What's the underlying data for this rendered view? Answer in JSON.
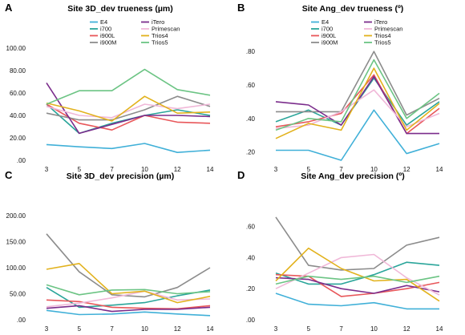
{
  "chart_data": [
    {
      "type": "line",
      "panel": "A",
      "title": "Site 3D_dev trueness (µm)",
      "x": [
        3,
        5,
        7,
        10,
        12,
        14
      ],
      "ylim": [
        0,
        100
      ],
      "yticks": [
        0,
        20,
        40,
        60,
        80,
        100
      ],
      "ytick_labels": [
        ".00",
        "20.00",
        "40.00",
        "60.00",
        "80.00",
        "100.00"
      ],
      "grid": false,
      "legend_position": "top",
      "series": [
        {
          "name": "E4",
          "color": "#40b0d8",
          "values": [
            14,
            12,
            10.5,
            15,
            7,
            9
          ]
        },
        {
          "name": "i700",
          "color": "#2aa59a",
          "values": [
            50,
            24,
            33,
            40,
            45,
            40
          ]
        },
        {
          "name": "i900L",
          "color": "#e8575a",
          "values": [
            50,
            33,
            27,
            40,
            34,
            33
          ]
        },
        {
          "name": "i900M",
          "color": "#8c8c8c",
          "values": [
            42,
            36,
            36,
            45,
            57,
            48
          ]
        },
        {
          "name": "iTero",
          "color": "#7b2d8c",
          "values": [
            69,
            24,
            32,
            40,
            40,
            39
          ]
        },
        {
          "name": "Primescan",
          "color": "#f0b8d8",
          "values": [
            48,
            40,
            38,
            50,
            46,
            50
          ]
        },
        {
          "name": "Trios4",
          "color": "#e2b21d",
          "values": [
            51,
            44,
            35,
            57,
            42,
            43
          ]
        },
        {
          "name": "Trios5",
          "color": "#6cc484",
          "values": [
            50,
            62,
            62,
            81,
            63,
            58
          ]
        }
      ]
    },
    {
      "type": "line",
      "panel": "B",
      "title": "Site Ang_dev trueness (º)",
      "x": [
        3,
        5,
        7,
        10,
        12,
        14
      ],
      "ylim": [
        0.15,
        0.82
      ],
      "yticks": [
        0.2,
        0.4,
        0.6,
        0.8
      ],
      "ytick_labels": [
        ".20",
        ".40",
        ".60",
        ".80"
      ],
      "grid": false,
      "legend_position": "top",
      "series": [
        {
          "name": "E4",
          "color": "#40b0d8",
          "values": [
            0.21,
            0.21,
            0.15,
            0.45,
            0.19,
            0.25
          ]
        },
        {
          "name": "i700",
          "color": "#2aa59a",
          "values": [
            0.38,
            0.45,
            0.36,
            0.64,
            0.36,
            0.5
          ]
        },
        {
          "name": "i900L",
          "color": "#e8575a",
          "values": [
            0.35,
            0.38,
            0.43,
            0.66,
            0.31,
            0.46
          ]
        },
        {
          "name": "i900M",
          "color": "#8c8c8c",
          "values": [
            0.44,
            0.44,
            0.44,
            0.8,
            0.42,
            0.52
          ]
        },
        {
          "name": "iTero",
          "color": "#7b2d8c",
          "values": [
            0.5,
            0.48,
            0.36,
            0.65,
            0.31,
            0.31
          ]
        },
        {
          "name": "Primescan",
          "color": "#f0b8d8",
          "values": [
            0.34,
            0.36,
            0.44,
            0.57,
            0.35,
            0.43
          ]
        },
        {
          "name": "Trios4",
          "color": "#e2b21d",
          "values": [
            0.28,
            0.37,
            0.33,
            0.7,
            0.33,
            0.49
          ]
        },
        {
          "name": "Trios5",
          "color": "#6cc484",
          "values": [
            0.33,
            0.4,
            0.38,
            0.75,
            0.4,
            0.55
          ]
        }
      ]
    },
    {
      "type": "line",
      "panel": "C",
      "title": "Site 3D_dev precision (µm)",
      "x": [
        3,
        5,
        7,
        10,
        12,
        14
      ],
      "ylim": [
        0,
        200
      ],
      "yticks": [
        0,
        50,
        100,
        150,
        200
      ],
      "ytick_labels": [
        ".00",
        "50.00",
        "100.00",
        "150.00",
        "200.00"
      ],
      "grid": false,
      "legend_position": "none",
      "series": [
        {
          "name": "E4",
          "color": "#40b0d8",
          "values": [
            18,
            10,
            11,
            15,
            11,
            8
          ]
        },
        {
          "name": "i700",
          "color": "#2aa59a",
          "values": [
            62,
            24,
            28,
            33,
            46,
            57
          ]
        },
        {
          "name": "i900L",
          "color": "#e8575a",
          "values": [
            38,
            35,
            24,
            22,
            21,
            27
          ]
        },
        {
          "name": "i900M",
          "color": "#8c8c8c",
          "values": [
            165,
            92,
            48,
            44,
            62,
            100
          ]
        },
        {
          "name": "iTero",
          "color": "#7b2d8c",
          "values": [
            22,
            27,
            16,
            20,
            20,
            24
          ]
        },
        {
          "name": "Primescan",
          "color": "#f0b8d8",
          "values": [
            25,
            32,
            42,
            55,
            38,
            40
          ]
        },
        {
          "name": "Trios4",
          "color": "#e2b21d",
          "values": [
            97,
            108,
            50,
            55,
            33,
            45
          ]
        },
        {
          "name": "Trios5",
          "color": "#6cc484",
          "values": [
            67,
            48,
            57,
            58,
            50,
            54
          ]
        }
      ]
    },
    {
      "type": "line",
      "panel": "D",
      "title": "Site Ang_dev precision (º)",
      "x": [
        3,
        5,
        7,
        10,
        12,
        14
      ],
      "ylim": [
        0,
        0.67
      ],
      "yticks": [
        0,
        0.2,
        0.4,
        0.6
      ],
      "ytick_labels": [
        ".00",
        ".20",
        ".40",
        ".60"
      ],
      "grid": false,
      "legend_position": "none",
      "series": [
        {
          "name": "E4",
          "color": "#40b0d8",
          "values": [
            0.17,
            0.1,
            0.09,
            0.11,
            0.07,
            0.07
          ]
        },
        {
          "name": "i700",
          "color": "#2aa59a",
          "values": [
            0.3,
            0.23,
            0.23,
            0.29,
            0.37,
            0.35
          ]
        },
        {
          "name": "i900L",
          "color": "#e8575a",
          "values": [
            0.29,
            0.28,
            0.15,
            0.17,
            0.2,
            0.24
          ]
        },
        {
          "name": "i900M",
          "color": "#8c8c8c",
          "values": [
            0.66,
            0.35,
            0.32,
            0.33,
            0.48,
            0.53
          ]
        },
        {
          "name": "iTero",
          "color": "#7b2d8c",
          "values": [
            0.27,
            0.26,
            0.2,
            0.17,
            0.22,
            0.18
          ]
        },
        {
          "name": "Primescan",
          "color": "#f0b8d8",
          "values": [
            0.2,
            0.3,
            0.4,
            0.42,
            0.27,
            0.16
          ]
        },
        {
          "name": "Trios4",
          "color": "#e2b21d",
          "values": [
            0.25,
            0.46,
            0.33,
            0.25,
            0.26,
            0.12
          ]
        },
        {
          "name": "Trios5",
          "color": "#6cc484",
          "values": [
            0.23,
            0.28,
            0.26,
            0.28,
            0.24,
            0.28
          ]
        }
      ]
    }
  ]
}
